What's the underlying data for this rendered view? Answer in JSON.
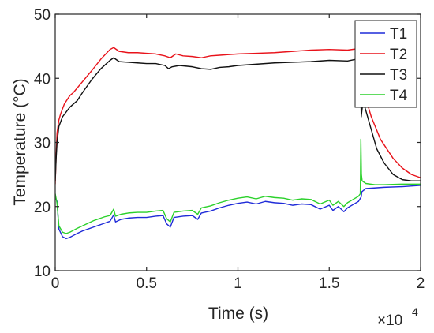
{
  "chart_data": {
    "type": "line",
    "xlabel": "Time (s)",
    "ylabel": "Temperature (°C)",
    "x_multiplier_label": "×10",
    "x_multiplier_exponent": "4",
    "xlim": [
      0,
      20000
    ],
    "ylim": [
      10,
      50
    ],
    "xticks": [
      0,
      5000,
      10000,
      15000,
      20000
    ],
    "xtick_labels": [
      "0",
      "0.5",
      "1",
      "1.5",
      "2"
    ],
    "yticks": [
      10,
      20,
      30,
      40,
      50
    ],
    "ytick_labels": [
      "10",
      "20",
      "30",
      "40",
      "50"
    ],
    "grid": false,
    "legend_position": "top-right",
    "colors": {
      "T1": "#1f2bd8",
      "T2": "#e8121a",
      "T3": "#111111",
      "T4": "#2bd12b",
      "axis": "#262626"
    },
    "series": [
      {
        "name": "T1",
        "color": "#1f2bd8",
        "points": [
          [
            0,
            21.5
          ],
          [
            100,
            20.8
          ],
          [
            200,
            16.5
          ],
          [
            400,
            15.3
          ],
          [
            600,
            15.0
          ],
          [
            800,
            15.2
          ],
          [
            1000,
            15.5
          ],
          [
            1200,
            15.8
          ],
          [
            1500,
            16.2
          ],
          [
            1800,
            16.5
          ],
          [
            2100,
            16.8
          ],
          [
            2400,
            17.1
          ],
          [
            2700,
            17.4
          ],
          [
            3000,
            17.7
          ],
          [
            3200,
            18.7
          ],
          [
            3300,
            17.6
          ],
          [
            3600,
            18.0
          ],
          [
            4000,
            18.2
          ],
          [
            4500,
            18.3
          ],
          [
            5000,
            18.3
          ],
          [
            5500,
            18.5
          ],
          [
            5900,
            18.6
          ],
          [
            6100,
            17.3
          ],
          [
            6300,
            16.8
          ],
          [
            6500,
            18.3
          ],
          [
            7000,
            18.5
          ],
          [
            7500,
            18.6
          ],
          [
            7800,
            18.0
          ],
          [
            8000,
            19.0
          ],
          [
            8500,
            19.3
          ],
          [
            9000,
            19.8
          ],
          [
            9500,
            20.2
          ],
          [
            10000,
            20.5
          ],
          [
            10500,
            20.7
          ],
          [
            11000,
            20.4
          ],
          [
            11500,
            20.8
          ],
          [
            12000,
            20.6
          ],
          [
            12500,
            20.5
          ],
          [
            13000,
            20.2
          ],
          [
            13500,
            20.4
          ],
          [
            14000,
            20.3
          ],
          [
            14500,
            19.6
          ],
          [
            15000,
            20.2
          ],
          [
            15200,
            19.4
          ],
          [
            15500,
            20.0
          ],
          [
            15800,
            19.2
          ],
          [
            16000,
            19.8
          ],
          [
            16300,
            20.3
          ],
          [
            16600,
            20.8
          ],
          [
            16750,
            21.5
          ],
          [
            16780,
            22.3
          ],
          [
            17000,
            22.8
          ],
          [
            18000,
            23.0
          ],
          [
            19000,
            23.1
          ],
          [
            20000,
            23.3
          ]
        ]
      },
      {
        "name": "T2",
        "color": "#e8121a",
        "points": [
          [
            0,
            23.5
          ],
          [
            50,
            28.0
          ],
          [
            100,
            31.5
          ],
          [
            200,
            33.5
          ],
          [
            300,
            34.5
          ],
          [
            500,
            36.0
          ],
          [
            800,
            37.3
          ],
          [
            1000,
            37.8
          ],
          [
            1500,
            39.5
          ],
          [
            2000,
            41.2
          ],
          [
            2500,
            43.0
          ],
          [
            3000,
            44.5
          ],
          [
            3200,
            44.8
          ],
          [
            3500,
            44.2
          ],
          [
            4000,
            44.0
          ],
          [
            4500,
            44.0
          ],
          [
            5000,
            43.9
          ],
          [
            5500,
            43.8
          ],
          [
            6000,
            43.5
          ],
          [
            6300,
            43.2
          ],
          [
            6600,
            43.8
          ],
          [
            7000,
            43.5
          ],
          [
            7500,
            43.4
          ],
          [
            8000,
            43.2
          ],
          [
            8500,
            43.5
          ],
          [
            9000,
            43.6
          ],
          [
            9500,
            43.7
          ],
          [
            10000,
            43.8
          ],
          [
            11000,
            43.9
          ],
          [
            12000,
            44.0
          ],
          [
            13000,
            44.2
          ],
          [
            14000,
            44.4
          ],
          [
            15000,
            44.5
          ],
          [
            16000,
            44.4
          ],
          [
            16500,
            44.6
          ],
          [
            16700,
            44.8
          ],
          [
            16750,
            37.0
          ],
          [
            16900,
            37.8
          ],
          [
            17300,
            34.0
          ],
          [
            17800,
            30.5
          ],
          [
            18500,
            27.5
          ],
          [
            19000,
            26.0
          ],
          [
            19500,
            25.0
          ],
          [
            20000,
            24.5
          ]
        ]
      },
      {
        "name": "T3",
        "color": "#111111",
        "points": [
          [
            0,
            24.0
          ],
          [
            50,
            27.5
          ],
          [
            100,
            30.0
          ],
          [
            200,
            32.5
          ],
          [
            400,
            34.0
          ],
          [
            800,
            35.5
          ],
          [
            1200,
            36.5
          ],
          [
            1500,
            37.8
          ],
          [
            2000,
            39.8
          ],
          [
            2500,
            41.5
          ],
          [
            3000,
            42.8
          ],
          [
            3200,
            43.2
          ],
          [
            3500,
            42.6
          ],
          [
            4000,
            42.5
          ],
          [
            4500,
            42.4
          ],
          [
            5000,
            42.3
          ],
          [
            5500,
            42.3
          ],
          [
            6000,
            42.0
          ],
          [
            6200,
            41.5
          ],
          [
            6400,
            41.8
          ],
          [
            6800,
            42.0
          ],
          [
            7500,
            41.8
          ],
          [
            8000,
            41.5
          ],
          [
            8500,
            41.4
          ],
          [
            9000,
            41.7
          ],
          [
            9500,
            41.8
          ],
          [
            10000,
            42.0
          ],
          [
            11000,
            42.2
          ],
          [
            12000,
            42.4
          ],
          [
            13000,
            42.5
          ],
          [
            14000,
            42.6
          ],
          [
            15000,
            42.8
          ],
          [
            16000,
            42.7
          ],
          [
            16500,
            43.0
          ],
          [
            16700,
            43.5
          ],
          [
            16750,
            34.0
          ],
          [
            16850,
            36.5
          ],
          [
            17200,
            33.0
          ],
          [
            17600,
            29.0
          ],
          [
            18000,
            26.8
          ],
          [
            18500,
            25.0
          ],
          [
            19000,
            24.2
          ],
          [
            19500,
            24.0
          ],
          [
            20000,
            24.0
          ]
        ]
      },
      {
        "name": "T4",
        "color": "#2bd12b",
        "points": [
          [
            0,
            22.0
          ],
          [
            100,
            20.5
          ],
          [
            200,
            17.0
          ],
          [
            400,
            16.0
          ],
          [
            600,
            15.8
          ],
          [
            800,
            16.0
          ],
          [
            1000,
            16.3
          ],
          [
            1200,
            16.6
          ],
          [
            1500,
            17.0
          ],
          [
            1800,
            17.4
          ],
          [
            2100,
            17.8
          ],
          [
            2400,
            18.1
          ],
          [
            2700,
            18.4
          ],
          [
            3000,
            18.6
          ],
          [
            3200,
            19.6
          ],
          [
            3300,
            18.5
          ],
          [
            3600,
            18.8
          ],
          [
            4000,
            19.0
          ],
          [
            4500,
            19.1
          ],
          [
            5000,
            19.1
          ],
          [
            5500,
            19.3
          ],
          [
            5900,
            19.4
          ],
          [
            6100,
            18.1
          ],
          [
            6300,
            17.6
          ],
          [
            6500,
            19.1
          ],
          [
            7000,
            19.3
          ],
          [
            7500,
            19.4
          ],
          [
            7800,
            18.8
          ],
          [
            8000,
            19.8
          ],
          [
            8500,
            20.1
          ],
          [
            9000,
            20.6
          ],
          [
            9500,
            21.0
          ],
          [
            10000,
            21.3
          ],
          [
            10500,
            21.5
          ],
          [
            11000,
            21.2
          ],
          [
            11500,
            21.6
          ],
          [
            12000,
            21.4
          ],
          [
            12500,
            21.3
          ],
          [
            13000,
            21.0
          ],
          [
            13500,
            21.2
          ],
          [
            14000,
            21.1
          ],
          [
            14500,
            20.4
          ],
          [
            15000,
            21.0
          ],
          [
            15200,
            20.2
          ],
          [
            15500,
            20.8
          ],
          [
            15800,
            20.0
          ],
          [
            16000,
            20.6
          ],
          [
            16300,
            21.1
          ],
          [
            16600,
            21.6
          ],
          [
            16700,
            22.0
          ],
          [
            16730,
            30.5
          ],
          [
            16760,
            25.0
          ],
          [
            16800,
            24.0
          ],
          [
            17000,
            23.6
          ],
          [
            17500,
            23.4
          ],
          [
            18000,
            23.4
          ],
          [
            19000,
            23.5
          ],
          [
            20000,
            23.5
          ]
        ]
      }
    ]
  }
}
